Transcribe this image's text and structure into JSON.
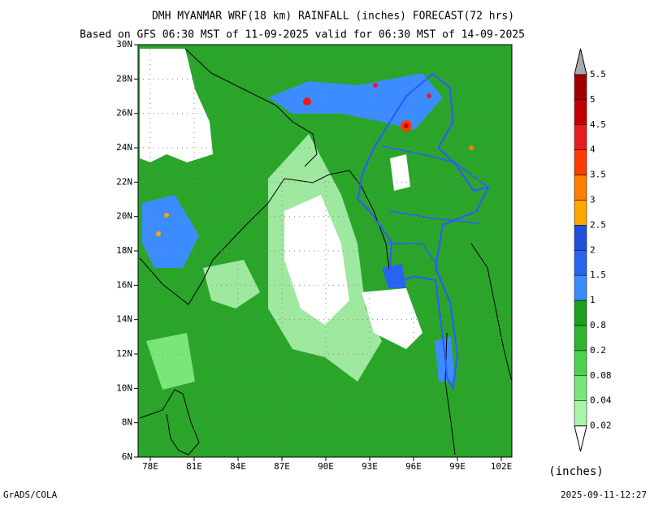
{
  "header": {
    "title": "DMH MYANMAR WRF(18 km) RAINFALL (inches) FORECAST(72 hrs)",
    "subtitle": "Based on GFS 06:30 MST of 11-09-2025 valid for 06:30 MST of 14-09-2025"
  },
  "map": {
    "lon_labels": [
      "78E",
      "81E",
      "84E",
      "87E",
      "90E",
      "93E",
      "96E",
      "99E",
      "102E"
    ],
    "lat_labels": [
      "6N",
      "8N",
      "10N",
      "12N",
      "14N",
      "16N",
      "18N",
      "20N",
      "22N",
      "24N",
      "26N",
      "28N",
      "30N"
    ]
  },
  "colorbar": {
    "labels": [
      "5.5",
      "5",
      "4.5",
      "4",
      "3.5",
      "3",
      "2.5",
      "2",
      "1.5",
      "1",
      "0.8",
      "0.2",
      "0.08",
      "0.04",
      "0.02"
    ],
    "colors": [
      "#a00000",
      "#c40000",
      "#e81c1c",
      "#ff3c00",
      "#ff7d00",
      "#ffa600",
      "#1e50dc",
      "#2864f0",
      "#3c8cff",
      "#1e9e1e",
      "#2fb42f",
      "#4fd04f",
      "#7ae67a",
      "#a8f5a8"
    ],
    "unit": "(inches)"
  },
  "footer": {
    "left": "GrADS/COLA",
    "right": "2025-09-11-12:27"
  }
}
